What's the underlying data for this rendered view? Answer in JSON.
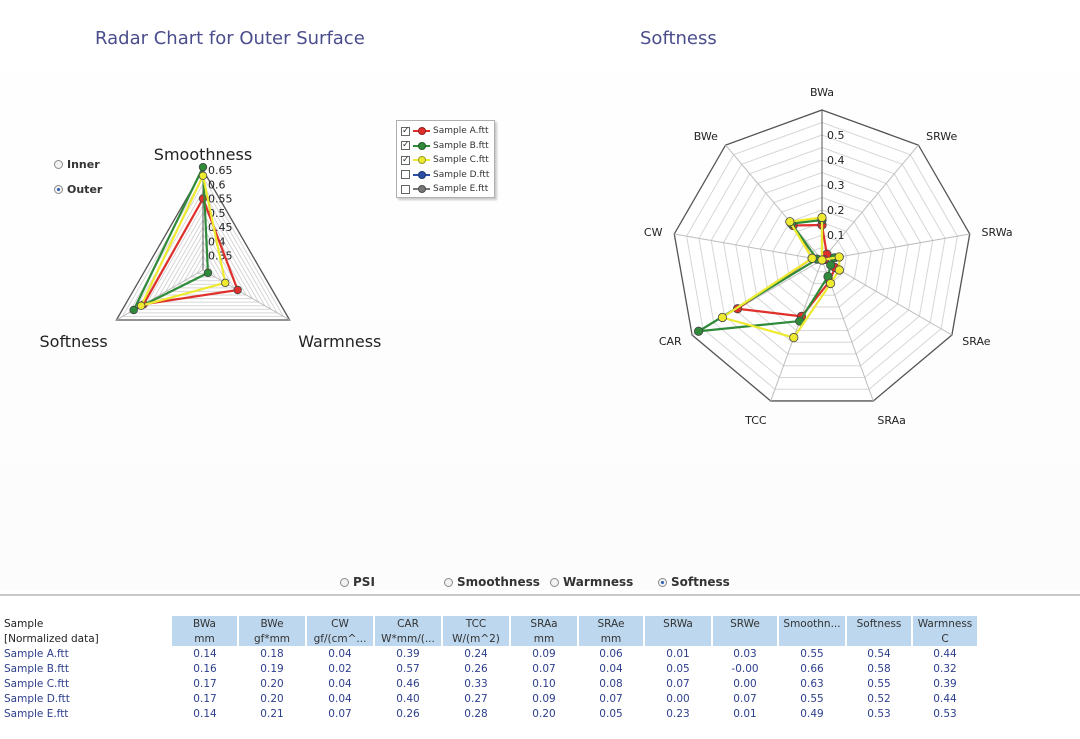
{
  "left_chart": {
    "title": "Radar Chart for Outer Surface",
    "view_options": [
      {
        "label": "Inner",
        "checked": false
      },
      {
        "label": "Outer",
        "checked": true
      }
    ]
  },
  "right_chart": {
    "title": "Softness"
  },
  "legend": {
    "items": [
      {
        "label": "Sample A.ftt",
        "checked": true,
        "color": "#e0302b"
      },
      {
        "label": "Sample B.ftt",
        "checked": true,
        "color": "#2f8a3a"
      },
      {
        "label": "Sample C.ftt",
        "checked": true,
        "color": "#eeea30"
      },
      {
        "label": "Sample D.ftt",
        "checked": false,
        "color": "#2c4fa6"
      },
      {
        "label": "Sample E.ftt",
        "checked": false,
        "color": "#777777"
      }
    ]
  },
  "mode_options": [
    {
      "label": "PSI",
      "checked": false
    },
    {
      "label": "Smoothness",
      "checked": false
    },
    {
      "label": "Warmness",
      "checked": false
    },
    {
      "label": "Softness",
      "checked": true
    }
  ],
  "table": {
    "row_label_header": "Sample",
    "unit_row_label": "[Normalized data]",
    "columns": [
      {
        "label": "BWa",
        "unit": "mm"
      },
      {
        "label": "BWe",
        "unit": "gf*mm"
      },
      {
        "label": "CW",
        "unit": "gf/(cm^..."
      },
      {
        "label": "CAR",
        "unit": "W*mm/(..."
      },
      {
        "label": "TCC",
        "unit": "W/(m^2)"
      },
      {
        "label": "SRAa",
        "unit": "mm"
      },
      {
        "label": "SRAe",
        "unit": "mm"
      },
      {
        "label": "SRWa",
        "unit": ""
      },
      {
        "label": "SRWe",
        "unit": ""
      },
      {
        "label": "Smoothn...",
        "unit": ""
      },
      {
        "label": "Softness",
        "unit": ""
      },
      {
        "label": "Warmness",
        "unit": "C"
      }
    ],
    "rows": [
      {
        "name": "Sample A.ftt",
        "values": [
          "0.14",
          "0.18",
          "0.04",
          "0.39",
          "0.24",
          "0.09",
          "0.06",
          "0.01",
          "0.03",
          "0.55",
          "0.54",
          "0.44"
        ]
      },
      {
        "name": "Sample B.ftt",
        "values": [
          "0.16",
          "0.19",
          "0.02",
          "0.57",
          "0.26",
          "0.07",
          "0.04",
          "0.05",
          "-0.00",
          "0.66",
          "0.58",
          "0.32"
        ]
      },
      {
        "name": "Sample C.ftt",
        "values": [
          "0.17",
          "0.20",
          "0.04",
          "0.46",
          "0.33",
          "0.10",
          "0.08",
          "0.07",
          "0.00",
          "0.63",
          "0.55",
          "0.39"
        ]
      },
      {
        "name": "Sample D.ftt",
        "values": [
          "0.17",
          "0.20",
          "0.04",
          "0.40",
          "0.27",
          "0.09",
          "0.07",
          "0.00",
          "0.07",
          "0.55",
          "0.52",
          "0.44"
        ]
      },
      {
        "name": "Sample E.ftt",
        "values": [
          "0.14",
          "0.21",
          "0.07",
          "0.26",
          "0.28",
          "0.20",
          "0.05",
          "0.23",
          "0.01",
          "0.49",
          "0.53",
          "0.53"
        ]
      }
    ]
  },
  "chart_data": [
    {
      "type": "radar",
      "title": "Radar Chart for Outer Surface",
      "axes": [
        "Smoothness",
        "Warmness",
        "Softness"
      ],
      "rlim": [
        0.3,
        0.65
      ],
      "tick_labels": [
        "0.35",
        "0.4",
        "0.45",
        "0.5",
        "0.55",
        "0.6",
        "0.65"
      ],
      "series": [
        {
          "name": "Sample A.ftt",
          "values": [
            0.55,
            0.44,
            0.54
          ]
        },
        {
          "name": "Sample B.ftt",
          "values": [
            0.66,
            0.32,
            0.58
          ]
        },
        {
          "name": "Sample C.ftt",
          "values": [
            0.63,
            0.39,
            0.55
          ]
        }
      ]
    },
    {
      "type": "radar",
      "title": "Softness",
      "axes": [
        "BWa",
        "SRWe",
        "SRWa",
        "SRAe",
        "SRAa",
        "TCC",
        "CAR",
        "CW",
        "BWe"
      ],
      "rlim": [
        0,
        0.6
      ],
      "tick_labels": [
        "0.1",
        "0.2",
        "0.3",
        "0.4",
        "0.5"
      ],
      "series": [
        {
          "name": "Sample A.ftt",
          "values": [
            0.14,
            0.03,
            0.01,
            0.06,
            0.09,
            0.24,
            0.39,
            0.04,
            0.18
          ]
        },
        {
          "name": "Sample B.ftt",
          "values": [
            0.16,
            -0.0,
            0.05,
            0.04,
            0.07,
            0.26,
            0.57,
            0.02,
            0.19
          ]
        },
        {
          "name": "Sample C.ftt",
          "values": [
            0.17,
            0.0,
            0.07,
            0.08,
            0.1,
            0.33,
            0.46,
            0.04,
            0.2
          ]
        }
      ]
    }
  ]
}
